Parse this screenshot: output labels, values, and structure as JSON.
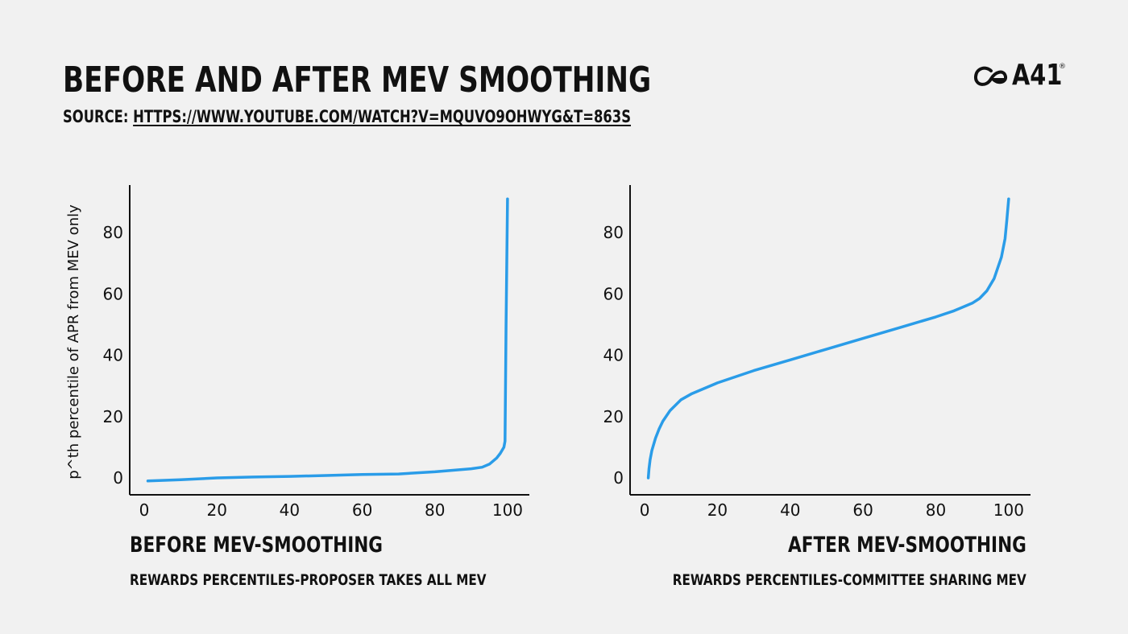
{
  "header": {
    "title": "BEFORE AND AFTER MEV SMOOTHING",
    "source_label": "SOURCE: ",
    "source_link": "HTTPS://WWW.YOUTUBE.COM/WATCH?V=MQUVO9OHWYG&T=863S",
    "logo_text": "A41",
    "logo_mark": "®"
  },
  "captions": {
    "left_title": "BEFORE MEV-SMOOTHING",
    "left_sub": "REWARDS PERCENTILES-PROPOSER TAKES ALL MEV",
    "right_title": "AFTER MEV-SMOOTHING",
    "right_sub": "REWARDS PERCENTILES-COMMITTEE SHARING MEV"
  },
  "colors": {
    "line": "#2a9ce8",
    "axis": "#111111",
    "background": "#f1f1f1"
  },
  "chart_data": [
    {
      "type": "line",
      "title": "BEFORE MEV-SMOOTHING",
      "ylabel": "p^th percentile of APR from MEV only",
      "xlabel": "",
      "xlim": [
        -4,
        106
      ],
      "ylim": [
        -5.5,
        95.5
      ],
      "xticks": [
        0,
        20,
        40,
        60,
        80,
        100
      ],
      "yticks": [
        0,
        20,
        40,
        60,
        80
      ],
      "grid": false,
      "x": [
        1,
        10,
        20,
        30,
        40,
        50,
        60,
        70,
        80,
        85,
        90,
        93,
        95,
        97,
        98,
        99,
        99.3,
        99.6,
        100
      ],
      "y": [
        -1,
        -0.6,
        0,
        0.3,
        0.5,
        0.8,
        1.1,
        1.3,
        2,
        2.5,
        3,
        3.5,
        4.5,
        6.5,
        8,
        10,
        12,
        50,
        91
      ]
    },
    {
      "type": "line",
      "title": "AFTER MEV-SMOOTHING",
      "ylabel": "",
      "xlabel": "",
      "xlim": [
        -4,
        106
      ],
      "ylim": [
        -5.5,
        95.5
      ],
      "xticks": [
        0,
        20,
        40,
        60,
        80,
        100
      ],
      "yticks": [
        0,
        20,
        40,
        60,
        80
      ],
      "grid": false,
      "x": [
        1,
        1.2,
        1.5,
        2,
        3,
        4,
        5,
        7,
        10,
        13,
        20,
        30,
        40,
        50,
        60,
        70,
        80,
        85,
        90,
        92,
        94,
        96,
        98,
        99,
        99.5,
        100
      ],
      "y": [
        0,
        3,
        6,
        9,
        13,
        16,
        18.5,
        22,
        25.5,
        27.5,
        31,
        35,
        38.5,
        42,
        45.5,
        49,
        52.5,
        54.5,
        57,
        58.5,
        61,
        65,
        72,
        78,
        84,
        91
      ]
    }
  ]
}
